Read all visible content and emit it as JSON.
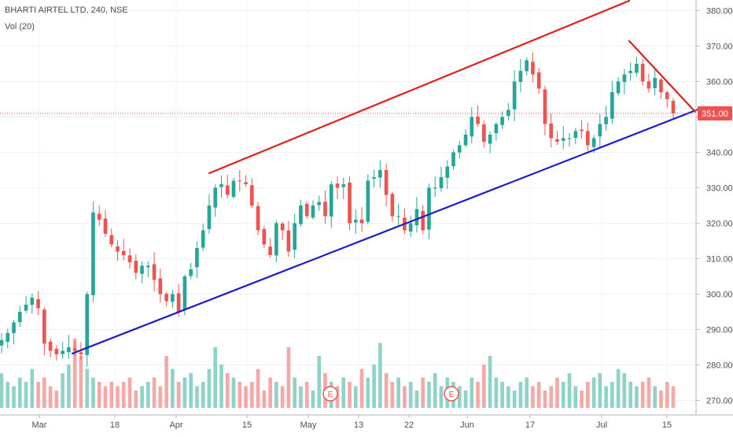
{
  "chart": {
    "title": "BHARTI AIRTEL LTD, 240, NSE",
    "volume_label": "Vol (20)",
    "price_tag": "351.00",
    "earnings_marker": "E"
  },
  "chart_data": {
    "type": "candlestick",
    "y_axis": {
      "ylim": [
        268,
        384
      ],
      "ticks": [
        "380.00",
        "370.00",
        "360.00",
        "350.00",
        "340.00",
        "330.00",
        "320.00",
        "310.00",
        "300.00",
        "290.00",
        "280.00",
        "270.00"
      ]
    },
    "x_axis": {
      "ticks": [
        "Mar",
        "18",
        "Apr",
        "15",
        "May",
        "13",
        "22",
        "Jun",
        "17",
        "Jul",
        "15"
      ]
    },
    "last_price": 351.0,
    "colors": {
      "up": "#26a69a",
      "down": "#ef5350",
      "channel_red": "#e0201a",
      "channel_blue": "#1a1acc"
    },
    "close_series": [
      287,
      289,
      292,
      295,
      297,
      299,
      296,
      286,
      284,
      283,
      284,
      285,
      284,
      283,
      300,
      323,
      321,
      317,
      314,
      312,
      311,
      309,
      306,
      308,
      308,
      304,
      300,
      298,
      300,
      295,
      305,
      307,
      313,
      318,
      325,
      330,
      331,
      328,
      332,
      332,
      331,
      325,
      318,
      314,
      311,
      320,
      318,
      312,
      320,
      325,
      322,
      325,
      326,
      322,
      331,
      330,
      331,
      320,
      321,
      320,
      332,
      333,
      335,
      328,
      322,
      322,
      318,
      320,
      324,
      318,
      330,
      330,
      333,
      336,
      340,
      342,
      345,
      350,
      348,
      343,
      345,
      348,
      350,
      352,
      360,
      363,
      366,
      362,
      358,
      348,
      344,
      343,
      344,
      344,
      346,
      346,
      342,
      344,
      348,
      350,
      357,
      360,
      362,
      363,
      365,
      360,
      358,
      361,
      357,
      355,
      351
    ],
    "volume_series": [
      8,
      6,
      5,
      7,
      6,
      9,
      6,
      7,
      5,
      4,
      8,
      10,
      16,
      12,
      9,
      7,
      6,
      5,
      6,
      5,
      6,
      7,
      4,
      5,
      6,
      7,
      5,
      12,
      9,
      6,
      7,
      8,
      5,
      6,
      9,
      14,
      10,
      8,
      7,
      6,
      5,
      6,
      9,
      4,
      7,
      6,
      5,
      14,
      7,
      5,
      6,
      4,
      12,
      8,
      6,
      5,
      7,
      6,
      5,
      9,
      7,
      10,
      15,
      8,
      6,
      7,
      5,
      6,
      4,
      7,
      6,
      8,
      5,
      7,
      6,
      5,
      4,
      7,
      6,
      10,
      12,
      7,
      6,
      5,
      4,
      6,
      7,
      5,
      6,
      4,
      5,
      7,
      6,
      8,
      5,
      4,
      6,
      7,
      8,
      5,
      6,
      9,
      8,
      6,
      5,
      6,
      7,
      5,
      4,
      6,
      5
    ],
    "earnings_markers": [
      {
        "date": "May 10",
        "label": "E"
      },
      {
        "date": "May 31",
        "label": "E"
      }
    ],
    "trendlines": [
      {
        "name": "channel-top",
        "color": "red",
        "from": {
          "date": "Apr 8",
          "price": 334
        },
        "to": {
          "date": "Jul 8",
          "price": 384
        }
      },
      {
        "name": "channel-bottom",
        "color": "blue",
        "from": {
          "date": "Mar 11",
          "price": 284
        },
        "to": {
          "date": "Jul 17",
          "price": 351
        }
      },
      {
        "name": "descending-resistance",
        "color": "red",
        "from": {
          "date": "Jul 6",
          "price": 371
        },
        "to": {
          "date": "Jul 17",
          "price": 351
        }
      }
    ]
  }
}
